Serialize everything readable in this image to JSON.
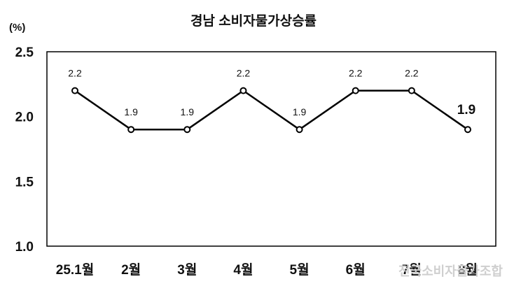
{
  "chart_data": {
    "type": "line",
    "title": "경남 소비자물가상승률",
    "unit_label": "(%)",
    "categories": [
      "25.1월",
      "2월",
      "3월",
      "4월",
      "5월",
      "6월",
      "7월",
      "8월"
    ],
    "series": [
      {
        "values": [
          2.2,
          1.9,
          1.9,
          2.2,
          1.9,
          2.2,
          2.2,
          1.9
        ]
      }
    ],
    "data_labels": [
      "2.2",
      "1.9",
      "1.9",
      "2.2",
      "1.9",
      "2.2",
      "2.2",
      "1.9"
    ],
    "highlight_index": 7,
    "ylim": [
      1.0,
      2.5
    ],
    "yticks": [
      1.0,
      1.5,
      2.0,
      2.5
    ],
    "ytick_labels": [
      "1.0",
      "1.5",
      "2.0",
      "2.5"
    ],
    "grid": false,
    "line_color": "#000000",
    "highlight_color": "#e02020"
  },
  "watermark": "전국소비자물가조합"
}
